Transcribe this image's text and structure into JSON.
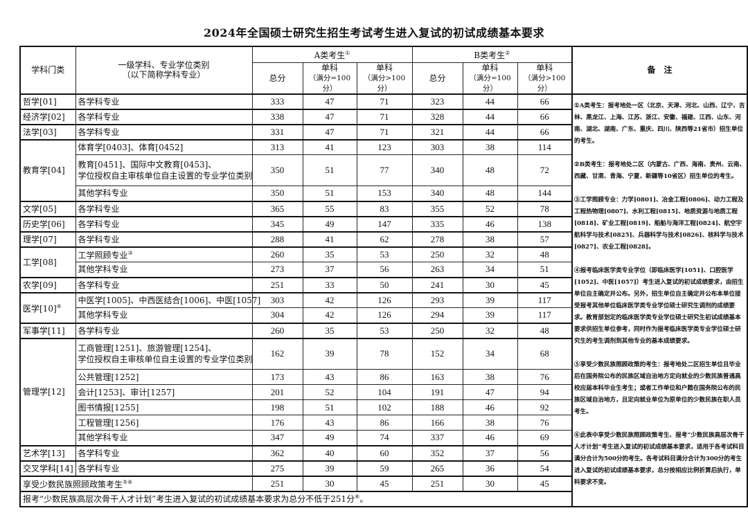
{
  "title": "2024年全国硕士研究生招生考试考生进入复试的初试成绩基本要求",
  "header": {
    "category": "学科门类",
    "subject_line1": "一级学科、专业学位类别",
    "subject_line2": "（以下简称学科专业）",
    "group_a": "A类考生",
    "group_a_sup": "①",
    "group_b": "B类考生",
    "group_b_sup": "②",
    "total": "总分",
    "single": "单科",
    "full100": "（满分=100分）",
    "fullgt100": "（满分>100分）",
    "remarks": "备　注"
  },
  "groups": [
    {
      "category": "哲学[01]",
      "items": [
        {
          "name": "各学科专业",
          "values": [
            333,
            47,
            71,
            323,
            44,
            66
          ]
        }
      ]
    },
    {
      "category": "经济学[02]",
      "items": [
        {
          "name": "各学科专业",
          "values": [
            338,
            47,
            71,
            328,
            44,
            66
          ]
        }
      ]
    },
    {
      "category": "法学[03]",
      "items": [
        {
          "name": "各学科专业",
          "values": [
            331,
            47,
            71,
            321,
            44,
            66
          ]
        }
      ]
    },
    {
      "category": "教育学[04]",
      "items": [
        {
          "name": "体育学[0403]、体育[0452]",
          "values": [
            313,
            41,
            123,
            303,
            38,
            114
          ]
        },
        {
          "name": "教育[0451]、国际中文教育[0453]、",
          "name2": "学位授权自主审核单位自主设置的专业学位类别",
          "values": [
            350,
            51,
            77,
            340,
            48,
            72
          ]
        },
        {
          "name": "其他学科专业",
          "values": [
            350,
            51,
            153,
            340,
            48,
            144
          ]
        }
      ]
    },
    {
      "category": "文学[05]",
      "items": [
        {
          "name": "各学科专业",
          "values": [
            365,
            55,
            83,
            355,
            52,
            78
          ]
        }
      ]
    },
    {
      "category": "历史学[06]",
      "items": [
        {
          "name": "各学科专业",
          "values": [
            345,
            49,
            147,
            335,
            46,
            138
          ]
        }
      ]
    },
    {
      "category": "理学[07]",
      "items": [
        {
          "name": "各学科专业",
          "values": [
            288,
            41,
            62,
            278,
            38,
            57
          ]
        }
      ]
    },
    {
      "category": "工学[08]",
      "items": [
        {
          "name": "工学照顾专业",
          "sup": "③",
          "values": [
            260,
            35,
            53,
            250,
            32,
            48
          ]
        },
        {
          "name": "其他学科专业",
          "values": [
            273,
            37,
            56,
            263,
            34,
            51
          ]
        }
      ]
    },
    {
      "category": "农学[09]",
      "items": [
        {
          "name": "各学科专业",
          "values": [
            251,
            33,
            50,
            241,
            30,
            45
          ]
        }
      ]
    },
    {
      "category": "医学[10]",
      "sup": "④",
      "items": [
        {
          "name": "中医学[1005]、中西医结合[1006]、中医[1057]",
          "values": [
            303,
            42,
            126,
            293,
            39,
            117
          ]
        },
        {
          "name": "其他学科专业",
          "values": [
            304,
            42,
            126,
            294,
            39,
            117
          ]
        }
      ]
    },
    {
      "category": "军事学[11]",
      "items": [
        {
          "name": "各学科专业",
          "values": [
            260,
            35,
            53,
            250,
            32,
            48
          ]
        }
      ]
    },
    {
      "category": "管理学[12]",
      "items": [
        {
          "name": "工商管理[1251]、旅游管理[1254]、",
          "name2": "学位授权自主审核单位自主设置的专业学位类别",
          "values": [
            162,
            39,
            78,
            152,
            34,
            68
          ]
        },
        {
          "name": "公共管理[1252]",
          "values": [
            173,
            43,
            86,
            163,
            38,
            76
          ]
        },
        {
          "name": "会计[1253]、审计[1257]",
          "values": [
            201,
            52,
            104,
            191,
            47,
            94
          ]
        },
        {
          "name": "图书情报[1255]",
          "values": [
            198,
            51,
            102,
            188,
            46,
            92
          ]
        },
        {
          "name": "工程管理[1256]",
          "values": [
            176,
            43,
            86,
            166,
            38,
            76
          ]
        },
        {
          "name": "其他学科专业",
          "values": [
            347,
            49,
            74,
            337,
            46,
            69
          ]
        }
      ]
    },
    {
      "category": "艺术学[13]",
      "items": [
        {
          "name": "各学科专业",
          "values": [
            362,
            40,
            60,
            352,
            37,
            56
          ]
        }
      ]
    },
    {
      "category": "交叉学科[14]",
      "items": [
        {
          "name": "各学科专业",
          "values": [
            275,
            39,
            59,
            265,
            36,
            54
          ]
        }
      ]
    },
    {
      "category": "享受少数民族照顾政策考生",
      "sup": "⑤⑥",
      "merged": true,
      "items": [
        {
          "values": [
            251,
            30,
            45,
            251,
            30,
            45
          ]
        }
      ]
    }
  ],
  "footer": {
    "text": "报考“少数民族高层次骨干人才计划”考生进入复试的初试成绩基本要求为总分不低于251分",
    "sup": "⑥",
    "end": "。"
  },
  "remarks": [
    "①A类考生：报考地处一区（北京、天津、河北、山西、辽宁、吉林、黑龙江、上海、江苏、浙江、安徽、福建、江西、山东、河南、湖北、湖南、广东、重庆、四川、陕西等21省市）招生单位的考生。",
    "②B类考生：报考地处二区（内蒙古、广西、海南、贵州、云南、西藏、甘肃、青海、宁夏、新疆等10省区）招生单位的考生。",
    "③工学照顾专业：力学[0801]、冶金工程[0806]、动力工程及工程热物理[0807]、水利工程[0815]、地质资源与地质工程[0818]、矿业工程[0819]、船舶与海洋工程[0824]、航空宇航科学与技术[0825]、兵器科学与技术[0826]、核科学与技术[0827]、农业工程[0828]。",
    "④报考临床医学类专业学位（即临床医学[1051]、口腔医学[1052]、中医[1057]）考生进入复试的初试成绩要求，由招生单位自主确定并公布。另外，招生单位自主确定并公布本单位接受报考其他单位临床医学类专业学位硕士研究生调剂的成绩要求。教育部划定的临床医学类专业学位硕士研究生初试成绩基本要求供招生单位参考，同时作为报考临床医学类专业学位硕士研究生的考生调剂到其他专业的基本成绩要求。",
    "⑤享受少数民族照顾政策的考生：报考地处二区招生单位且毕业后在国务院公布的民族区域自治地方定向就业的少数民族普通高校应届本科毕业生考生；或者工作单位和户籍在国务院公布的民族区域自治地方，且定向就业单位为原单位的少数民族在职人员考生。",
    "⑥此表中享受少数民族照顾政策考生、报考“少数民族高层次骨干人才计划”考生进入复试的初试成绩基本要求，适用于各考试科目满分合计为500分的考生。各考试科目满分合计为300分的考生进入复试的初试成绩基本要求，总分按相应比例折算后执行，单科要求不变。"
  ]
}
